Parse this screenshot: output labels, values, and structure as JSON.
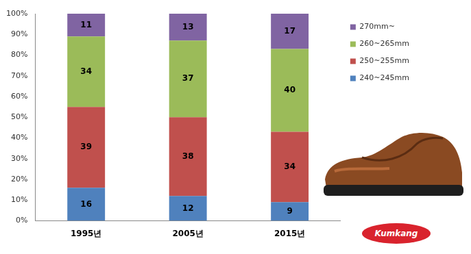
{
  "chart_data": {
    "type": "bar",
    "categories": [
      "1995년",
      "2005년",
      "2015년"
    ],
    "series": [
      {
        "name": "240~245mm",
        "color": "#4f81bd",
        "values": [
          16,
          12,
          9
        ]
      },
      {
        "name": "250~255mm",
        "color": "#c0504d",
        "values": [
          39,
          38,
          34
        ]
      },
      {
        "name": "260~265mm",
        "color": "#9bbb59",
        "values": [
          34,
          37,
          40
        ]
      },
      {
        "name": "270mm~",
        "color": "#8064a2",
        "values": [
          11,
          13,
          17
        ]
      }
    ],
    "stacked": true,
    "data_labels": true,
    "legend": "right",
    "grid": false,
    "ylim": [
      0,
      100
    ],
    "yticks": [
      {
        "value": 0,
        "label": "0%"
      },
      {
        "value": 10,
        "label": "10%"
      },
      {
        "value": 20,
        "label": "20%"
      },
      {
        "value": 30,
        "label": "30%"
      },
      {
        "value": 40,
        "label": "40%"
      },
      {
        "value": 50,
        "label": "50%"
      },
      {
        "value": 60,
        "label": "60%"
      },
      {
        "value": 70,
        "label": "70%"
      },
      {
        "value": 80,
        "label": "80%"
      },
      {
        "value": 90,
        "label": "90%"
      },
      {
        "value": 100,
        "label": "100%"
      }
    ],
    "annotations": [
      "Kumkang"
    ]
  }
}
